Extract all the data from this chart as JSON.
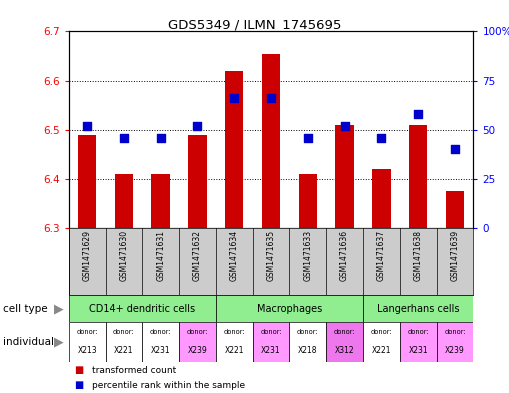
{
  "title": "GDS5349 / ILMN_1745695",
  "samples": [
    "GSM1471629",
    "GSM1471630",
    "GSM1471631",
    "GSM1471632",
    "GSM1471634",
    "GSM1471635",
    "GSM1471633",
    "GSM1471636",
    "GSM1471637",
    "GSM1471638",
    "GSM1471639"
  ],
  "red_values": [
    6.49,
    6.41,
    6.41,
    6.49,
    6.62,
    6.655,
    6.41,
    6.51,
    6.42,
    6.51,
    6.375
  ],
  "blue_values": [
    52,
    46,
    46,
    52,
    66,
    66,
    46,
    52,
    46,
    58,
    40
  ],
  "ylim_left": [
    6.3,
    6.7
  ],
  "ylim_right": [
    0,
    100
  ],
  "yticks_left": [
    6.3,
    6.4,
    6.5,
    6.6,
    6.7
  ],
  "yticks_right": [
    0,
    25,
    50,
    75,
    100
  ],
  "ytick_labels_right": [
    "0",
    "25",
    "50",
    "75",
    "100%"
  ],
  "bar_color": "#CC0000",
  "dot_color": "#0000CC",
  "bar_width": 0.5,
  "dot_size": 28,
  "cell_boundaries": [
    {
      "label": "CD14+ dendritic cells",
      "start": 0,
      "end": 4,
      "color": "#90EE90"
    },
    {
      "label": "Macrophages",
      "start": 4,
      "end": 8,
      "color": "#90EE90"
    },
    {
      "label": "Langerhans cells",
      "start": 8,
      "end": 11,
      "color": "#90EE90"
    }
  ],
  "indiv_donors": [
    "X213",
    "X221",
    "X231",
    "X239",
    "X221",
    "X231",
    "X218",
    "X312",
    "X221",
    "X231",
    "X239"
  ],
  "indiv_colors": [
    "#ffffff",
    "#ffffff",
    "#ffffff",
    "#ff99ff",
    "#ffffff",
    "#ff99ff",
    "#ffffff",
    "#ee77ee",
    "#ffffff",
    "#ff99ff",
    "#ff99ff"
  ],
  "sample_bg_color": "#cccccc",
  "grid_dotted_at": [
    6.4,
    6.5,
    6.6
  ]
}
